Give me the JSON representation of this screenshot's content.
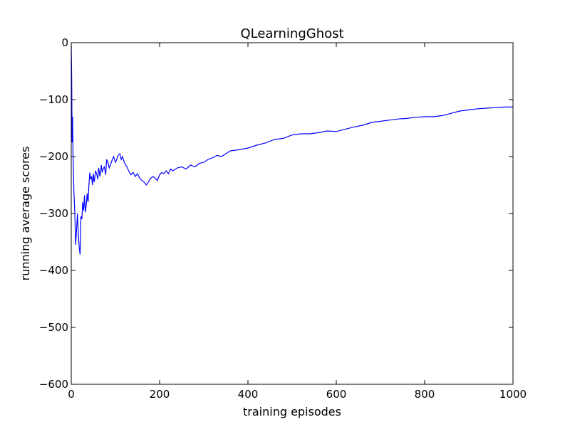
{
  "chart_data": {
    "type": "line",
    "title": "QLearningGhost",
    "xlabel": "training episodes",
    "ylabel": "running average scores",
    "xlim": [
      0,
      1000
    ],
    "ylim": [
      -600,
      0
    ],
    "xticks": [
      0,
      200,
      400,
      600,
      800,
      1000
    ],
    "yticks": [
      0,
      -100,
      -200,
      -300,
      -400,
      -500,
      -600
    ],
    "xtick_labels": [
      "0",
      "200",
      "400",
      "600",
      "800",
      "1000"
    ],
    "ytick_labels": [
      "0",
      "−100",
      "−200",
      "−300",
      "−400",
      "−500",
      "−600"
    ],
    "grid": false,
    "line_color": "#0000ff",
    "series": [
      {
        "x": [
          0,
          1,
          2,
          3,
          4,
          6,
          8,
          10,
          12,
          14,
          16,
          18,
          20,
          22,
          24,
          26,
          28,
          30,
          32,
          34,
          36,
          38,
          40,
          42,
          44,
          46,
          48,
          50,
          52,
          55,
          58,
          60,
          62,
          65,
          68,
          70,
          72,
          75,
          78,
          80,
          83,
          86,
          90,
          93,
          96,
          100,
          103,
          106,
          110,
          113,
          116,
          120,
          123,
          126,
          130,
          135,
          140,
          145,
          150,
          155,
          160,
          165,
          170,
          175,
          180,
          185,
          190,
          195,
          200,
          205,
          210,
          215,
          220,
          225,
          230,
          240,
          250,
          260,
          270,
          280,
          290,
          300,
          310,
          320,
          330,
          340,
          350,
          360,
          380,
          400,
          420,
          440,
          460,
          480,
          500,
          520,
          540,
          560,
          580,
          600,
          620,
          640,
          660,
          680,
          700,
          720,
          740,
          760,
          780,
          800,
          820,
          840,
          860,
          880,
          900,
          920,
          940,
          960,
          980,
          1000
        ],
        "y": [
          -5,
          -60,
          -175,
          -130,
          -200,
          -260,
          -300,
          -355,
          -330,
          -300,
          -335,
          -360,
          -372,
          -305,
          -310,
          -280,
          -295,
          -268,
          -298,
          -285,
          -265,
          -280,
          -250,
          -228,
          -240,
          -235,
          -250,
          -230,
          -245,
          -225,
          -232,
          -240,
          -220,
          -235,
          -215,
          -228,
          -222,
          -218,
          -232,
          -205,
          -210,
          -220,
          -212,
          -205,
          -200,
          -210,
          -205,
          -198,
          -195,
          -205,
          -200,
          -210,
          -215,
          -218,
          -225,
          -232,
          -228,
          -235,
          -230,
          -238,
          -242,
          -245,
          -250,
          -244,
          -238,
          -235,
          -238,
          -242,
          -232,
          -228,
          -230,
          -225,
          -230,
          -222,
          -225,
          -220,
          -218,
          -222,
          -215,
          -218,
          -212,
          -210,
          -205,
          -202,
          -198,
          -200,
          -195,
          -190,
          -188,
          -185,
          -180,
          -176,
          -170,
          -168,
          -162,
          -160,
          -160,
          -158,
          -155,
          -156,
          -152,
          -148,
          -145,
          -140,
          -138,
          -136,
          -134,
          -133,
          -131,
          -130,
          -130,
          -128,
          -124,
          -120,
          -118,
          -116,
          -115,
          -114,
          -113,
          -113
        ]
      }
    ]
  }
}
